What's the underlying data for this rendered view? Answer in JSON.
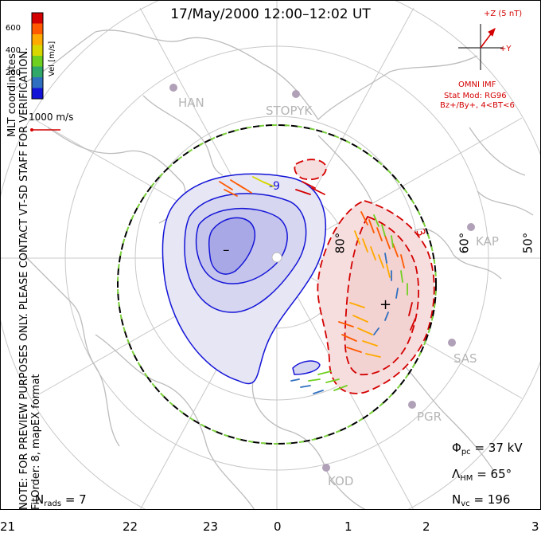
{
  "title": "17/May/2000 12:00–12:02 UT",
  "coordinates": "MLT coordinates",
  "note_line1": "NOTE: FOR PREVIEW PURPOSES ONLY. PLEASE CONTACT VT-SD STAFF FOR VERIFICATION.",
  "note_line2": "FitOrder: 8, mapEX format",
  "colorbar": {
    "label": "Vel [m/s]",
    "ticks": [
      "600",
      "400",
      "200"
    ],
    "colors": [
      "#d40000",
      "#ff5a00",
      "#ffaa00",
      "#d8d800",
      "#70d020",
      "#2fa86a",
      "#2f6fbf",
      "#1414d8"
    ]
  },
  "vector_scale": {
    "label": "1000 m/s"
  },
  "imf": {
    "z_label": "+Z (5 nT)",
    "y_label": "+Y",
    "source": "OMNI IMF",
    "model": "Stat Mod: RG96",
    "condition": "Bz+/By+, 4<BT<6"
  },
  "stations": [
    "HAN",
    "STOPYK",
    "KAP",
    "SAS",
    "PGR",
    "KOD"
  ],
  "latitudes": [
    "80°",
    "60°",
    "50°"
  ],
  "mlt_hours": [
    "21",
    "22",
    "23",
    "0",
    "1",
    "2",
    "3"
  ],
  "potential_labels": {
    "min_symbol": "–",
    "max_symbol": "+",
    "contour_minus": "-9",
    "contour_plus": "3"
  },
  "stats": {
    "phi_pc_symbol": "Φ",
    "phi_pc_sub": "pc",
    "phi_pc_value": "= 37 kV",
    "lambda_hm_symbol": "Λ",
    "lambda_hm_sub": "HM",
    "lambda_hm_value": "= 65°",
    "n_vc_symbol": "N",
    "n_vc_sub": "vc",
    "n_vc_value": "= 196",
    "n_rads_symbol": "N",
    "n_rads_sub": "rads",
    "n_rads_value": "= 7"
  }
}
